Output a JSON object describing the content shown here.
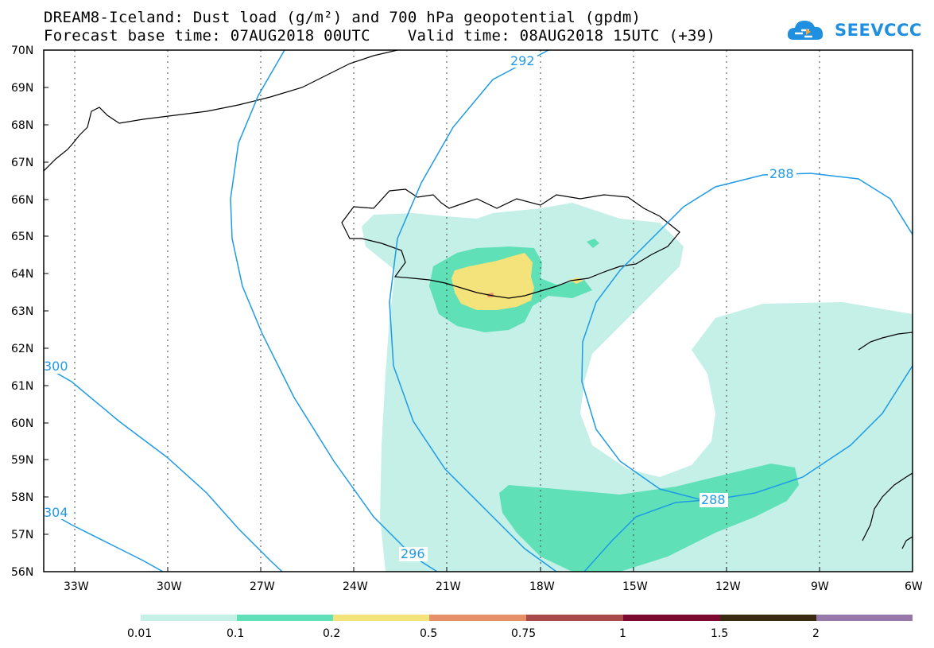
{
  "header": {
    "title_line1": "DREAM8-Iceland: Dust load (g/m²) and 700 hPa geopotential (gpdm)",
    "title_line2": "Forecast base time: 07AUG2018 00UTC    Valid time: 08AUG2018 15UTC (+39)"
  },
  "logo": {
    "text": "SEEVCCC",
    "icon": "cloud-icon",
    "color": "#1f8fe0"
  },
  "map": {
    "lat_labels": [
      "70N",
      "69N",
      "68N",
      "67N",
      "66N",
      "65N",
      "64N",
      "63N",
      "62N",
      "61N",
      "60N",
      "59N",
      "58N",
      "57N",
      "56N"
    ],
    "lon_labels": [
      "33W",
      "30W",
      "27W",
      "24W",
      "21W",
      "18W",
      "15W",
      "12W",
      "9W",
      "6W"
    ],
    "contour_labels": [
      "292",
      "288",
      "288",
      "296",
      "300",
      "304"
    ],
    "contour_color": "#1e9be6",
    "coast_color": "#000000"
  },
  "colorbar": {
    "levels": [
      "0.01",
      "0.1",
      "0.2",
      "0.5",
      "0.75",
      "1",
      "1.5",
      "2"
    ],
    "colors": [
      "#c4f0e8",
      "#5fe0b6",
      "#f4e27a",
      "#e6906a",
      "#a64a4a",
      "#7a0a30",
      "#3a2a10",
      "#9878a8"
    ]
  }
}
